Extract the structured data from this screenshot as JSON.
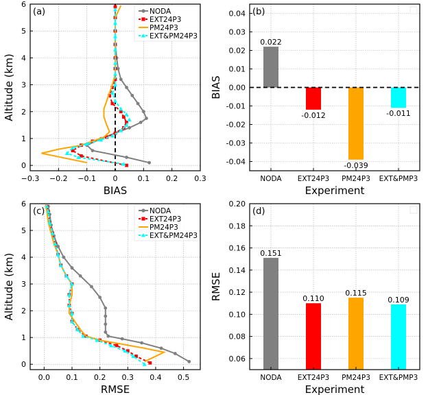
{
  "colors": {
    "NODA": "#808080",
    "EXT24P3": "#ff0000",
    "PM24P3": "#ffa500",
    "EXT_PM24P3": "#00ffff"
  },
  "chart_data": [
    {
      "id": "a",
      "type": "line",
      "panel_label": "(a)",
      "xlabel": "BIAS",
      "ylabel": "Altitude (km)",
      "xlim": [
        -0.3,
        0.3
      ],
      "ylim": [
        -0.2,
        6.0
      ],
      "xticks": [
        -0.3,
        -0.2,
        -0.1,
        0,
        0.1,
        0.2,
        0.3
      ],
      "xtick_labels": [
        "−0.3",
        "−0.2",
        "−0.1",
        "0",
        "0.1",
        "0.2",
        "0.3"
      ],
      "yticks": [
        0,
        1,
        2,
        3,
        4,
        5,
        6
      ],
      "ytick_labels": [
        "0",
        "1",
        "2",
        "3",
        "4",
        "5",
        "6"
      ],
      "grid": true,
      "zero_line": "x=0",
      "legend": {
        "placement": "top-right",
        "entries": [
          "NODA",
          "EXT24P3",
          "PM24P3",
          "EXT&PM24P3"
        ]
      },
      "series": [
        {
          "name": "NODA",
          "key": "NODA",
          "marker": "circle",
          "points": [
            [
              0.12,
              0.1
            ],
            [
              0.04,
              0.3
            ],
            [
              -0.08,
              0.55
            ],
            [
              -0.1,
              0.75
            ],
            [
              -0.05,
              1.0
            ],
            [
              0.0,
              1.2
            ],
            [
              0.05,
              1.4
            ],
            [
              0.09,
              1.6
            ],
            [
              0.11,
              1.75
            ],
            [
              0.1,
              2.0
            ],
            [
              0.08,
              2.3
            ],
            [
              0.06,
              2.6
            ],
            [
              0.04,
              2.9
            ],
            [
              0.02,
              3.2
            ],
            [
              0.01,
              3.6
            ],
            [
              0.005,
              4.0
            ],
            [
              0.0,
              4.5
            ],
            [
              0.0,
              5.0
            ],
            [
              0.0,
              5.5
            ],
            [
              0.0,
              5.9
            ]
          ]
        },
        {
          "name": "EXT24P3",
          "key": "EXT24P3",
          "marker": "square",
          "points": [
            [
              0.04,
              0.0
            ],
            [
              -0.12,
              0.35
            ],
            [
              -0.15,
              0.55
            ],
            [
              -0.12,
              0.75
            ],
            [
              -0.08,
              0.9
            ],
            [
              -0.03,
              1.05
            ],
            [
              0.0,
              1.2
            ],
            [
              0.03,
              1.4
            ],
            [
              0.04,
              1.6
            ],
            [
              0.03,
              1.8
            ],
            [
              0.02,
              2.0
            ],
            [
              -0.01,
              2.3
            ],
            [
              -0.02,
              2.6
            ],
            [
              -0.01,
              2.9
            ],
            [
              0.0,
              3.2
            ],
            [
              0.0,
              3.6
            ],
            [
              0.0,
              4.0
            ],
            [
              0.0,
              4.5
            ],
            [
              0.0,
              5.0
            ],
            [
              0.0,
              5.5
            ],
            [
              0.0,
              5.9
            ]
          ]
        },
        {
          "name": "PM24P3",
          "key": "PM24P3",
          "marker": "none",
          "points": [
            [
              -0.1,
              0.1
            ],
            [
              -0.26,
              0.45
            ],
            [
              -0.2,
              0.6
            ],
            [
              -0.12,
              0.75
            ],
            [
              -0.08,
              0.9
            ],
            [
              -0.04,
              1.05
            ],
            [
              -0.02,
              1.25
            ],
            [
              -0.03,
              1.5
            ],
            [
              -0.04,
              1.8
            ],
            [
              -0.04,
              2.1
            ],
            [
              -0.03,
              2.4
            ],
            [
              -0.02,
              2.7
            ],
            [
              -0.01,
              3.0
            ],
            [
              0.0,
              3.4
            ],
            [
              0.0,
              3.8
            ],
            [
              0.0,
              4.2
            ],
            [
              0.0,
              4.6
            ],
            [
              0.0,
              5.0
            ],
            [
              0.0,
              5.5
            ],
            [
              0.02,
              5.95
            ]
          ]
        },
        {
          "name": "EXT&PM24P3",
          "key": "EXT_PM24P3",
          "marker": "triangle",
          "points": [
            [
              0.03,
              0.05
            ],
            [
              -0.13,
              0.3
            ],
            [
              -0.17,
              0.45
            ],
            [
              -0.15,
              0.65
            ],
            [
              -0.1,
              0.8
            ],
            [
              -0.05,
              0.95
            ],
            [
              -0.01,
              1.1
            ],
            [
              0.02,
              1.3
            ],
            [
              0.04,
              1.5
            ],
            [
              0.05,
              1.7
            ],
            [
              0.04,
              1.9
            ],
            [
              0.02,
              2.1
            ],
            [
              0.0,
              2.4
            ],
            [
              -0.01,
              2.7
            ],
            [
              0.0,
              3.0
            ],
            [
              0.0,
              3.4
            ],
            [
              0.0,
              3.8
            ],
            [
              0.0,
              4.3
            ],
            [
              0.0,
              4.8
            ],
            [
              0.0,
              5.3
            ],
            [
              0.0,
              5.8
            ]
          ]
        }
      ]
    },
    {
      "id": "b",
      "type": "bar",
      "panel_label": "(b)",
      "xlabel": "Experiment",
      "ylabel": "BIAS",
      "ylim": [
        -0.045,
        0.045
      ],
      "yticks": [
        -0.04,
        -0.03,
        -0.02,
        -0.01,
        0.0,
        0.01,
        0.02,
        0.03,
        0.04
      ],
      "ytick_labels": [
        "-0.04",
        "-0.03",
        "-0.02",
        "-0.01",
        "0.00",
        "0.01",
        "0.02",
        "0.03",
        "0.04"
      ],
      "grid": true,
      "zero_line": "y=0",
      "categories": [
        "NODA",
        "EXT24P3",
        "PM24P3",
        "EXT&PMP3"
      ],
      "values": [
        0.022,
        -0.012,
        -0.039,
        -0.011
      ],
      "value_labels": [
        "0.022",
        "-0.012",
        "-0.039",
        "-0.011"
      ],
      "bar_color_keys": [
        "NODA",
        "EXT24P3",
        "PM24P3",
        "EXT_PM24P3"
      ]
    },
    {
      "id": "c",
      "type": "line",
      "panel_label": "(c)",
      "xlabel": "RMSE",
      "ylabel": "Altitude (km)",
      "xlim": [
        -0.05,
        0.56
      ],
      "ylim": [
        -0.2,
        6.0
      ],
      "xticks": [
        0.0,
        0.1,
        0.2,
        0.3,
        0.4,
        0.5
      ],
      "xtick_labels": [
        "0.0",
        "0.1",
        "0.2",
        "0.3",
        "0.4",
        "0.5"
      ],
      "yticks": [
        0,
        1,
        2,
        3,
        4,
        5,
        6
      ],
      "ytick_labels": [
        "0",
        "1",
        "2",
        "3",
        "4",
        "5",
        "6"
      ],
      "grid": true,
      "legend": {
        "placement": "top-right",
        "entries": [
          "NODA",
          "EXT24P3",
          "PM24P3",
          "EXT&PM24P3"
        ]
      },
      "series": [
        {
          "name": "NODA",
          "key": "NODA",
          "marker": "circle",
          "points": [
            [
              0.52,
              0.1
            ],
            [
              0.47,
              0.4
            ],
            [
              0.42,
              0.6
            ],
            [
              0.35,
              0.8
            ],
            [
              0.28,
              0.95
            ],
            [
              0.23,
              1.05
            ],
            [
              0.22,
              1.2
            ],
            [
              0.22,
              1.5
            ],
            [
              0.22,
              1.8
            ],
            [
              0.22,
              2.1
            ],
            [
              0.2,
              2.5
            ],
            [
              0.17,
              2.9
            ],
            [
              0.13,
              3.3
            ],
            [
              0.1,
              3.6
            ],
            [
              0.07,
              4.0
            ],
            [
              0.05,
              4.4
            ],
            [
              0.035,
              4.8
            ],
            [
              0.025,
              5.2
            ],
            [
              0.02,
              5.6
            ],
            [
              0.015,
              5.9
            ]
          ]
        },
        {
          "name": "EXT24P3",
          "key": "EXT24P3",
          "marker": "square",
          "points": [
            [
              0.38,
              0.05
            ],
            [
              0.33,
              0.3
            ],
            [
              0.3,
              0.5
            ],
            [
              0.26,
              0.7
            ],
            [
              0.2,
              0.9
            ],
            [
              0.15,
              1.05
            ],
            [
              0.12,
              1.3
            ],
            [
              0.1,
              1.6
            ],
            [
              0.1,
              1.9
            ],
            [
              0.09,
              2.2
            ],
            [
              0.09,
              2.6
            ],
            [
              0.1,
              3.0
            ],
            [
              0.08,
              3.3
            ],
            [
              0.06,
              3.7
            ],
            [
              0.05,
              4.1
            ],
            [
              0.04,
              4.5
            ],
            [
              0.03,
              4.9
            ],
            [
              0.02,
              5.3
            ],
            [
              0.015,
              5.7
            ],
            [
              0.01,
              5.9
            ]
          ]
        },
        {
          "name": "PM24P3",
          "key": "PM24P3",
          "marker": "none",
          "points": [
            [
              0.36,
              0.1
            ],
            [
              0.43,
              0.45
            ],
            [
              0.36,
              0.6
            ],
            [
              0.28,
              0.75
            ],
            [
              0.2,
              0.9
            ],
            [
              0.15,
              1.05
            ],
            [
              0.13,
              1.3
            ],
            [
              0.11,
              1.6
            ],
            [
              0.09,
              1.9
            ],
            [
              0.09,
              2.2
            ],
            [
              0.1,
              2.6
            ],
            [
              0.1,
              3.0
            ],
            [
              0.08,
              3.3
            ],
            [
              0.06,
              3.7
            ],
            [
              0.05,
              4.1
            ],
            [
              0.035,
              4.5
            ],
            [
              0.025,
              4.9
            ],
            [
              0.015,
              5.3
            ],
            [
              0.01,
              5.7
            ],
            [
              0.005,
              5.95
            ]
          ]
        },
        {
          "name": "EXT&PM24P3",
          "key": "EXT_PM24P3",
          "marker": "triangle",
          "points": [
            [
              0.36,
              0.0
            ],
            [
              0.32,
              0.3
            ],
            [
              0.29,
              0.5
            ],
            [
              0.24,
              0.7
            ],
            [
              0.19,
              0.9
            ],
            [
              0.14,
              1.05
            ],
            [
              0.12,
              1.3
            ],
            [
              0.1,
              1.6
            ],
            [
              0.1,
              1.9
            ],
            [
              0.09,
              2.2
            ],
            [
              0.09,
              2.6
            ],
            [
              0.1,
              3.0
            ],
            [
              0.08,
              3.3
            ],
            [
              0.06,
              3.7
            ],
            [
              0.05,
              4.1
            ],
            [
              0.04,
              4.5
            ],
            [
              0.03,
              4.9
            ],
            [
              0.02,
              5.3
            ],
            [
              0.015,
              5.7
            ],
            [
              0.01,
              5.9
            ]
          ]
        }
      ]
    },
    {
      "id": "d",
      "type": "bar",
      "panel_label": "(d)",
      "xlabel": "Experiment",
      "ylabel": "RMSE",
      "ylim": [
        0.05,
        0.2
      ],
      "yticks": [
        0.06,
        0.08,
        0.1,
        0.12,
        0.14,
        0.16,
        0.18,
        0.2
      ],
      "ytick_labels": [
        "0.06",
        "0.08",
        "0.10",
        "0.12",
        "0.14",
        "0.16",
        "0.18",
        "0.20"
      ],
      "grid": true,
      "categories": [
        "NODA",
        "EXT24P3",
        "PM24P3",
        "EXT&PMP3"
      ],
      "values": [
        0.151,
        0.11,
        0.115,
        0.109
      ],
      "value_labels": [
        "0.151",
        "0.110",
        "0.115",
        "0.109"
      ],
      "bar_color_keys": [
        "NODA",
        "EXT24P3",
        "PM24P3",
        "EXT_PM24P3"
      ]
    }
  ]
}
